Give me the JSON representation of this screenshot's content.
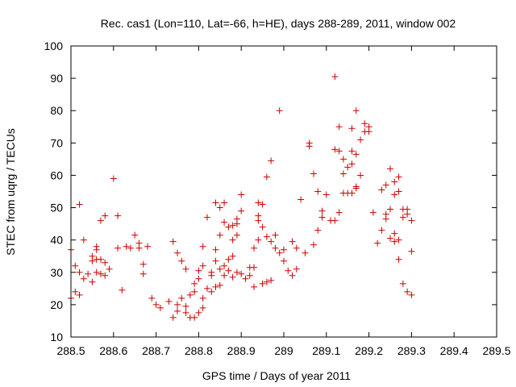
{
  "chart_data": {
    "type": "scatter",
    "title": "Rec. cas1 (Lon=110, Lat=-66, h=HE), days 288-289, 2011, window 002",
    "xlabel": "GPS time / Days of year 2011",
    "ylabel": "STEC from uqrg / TECUs",
    "xlim": [
      288.5,
      289.5
    ],
    "ylim": [
      10,
      100
    ],
    "xticks": [
      288.5,
      288.6,
      288.7,
      288.8,
      288.9,
      289,
      289.1,
      289.2,
      289.3,
      289.4,
      289.5
    ],
    "xtick_labels": [
      "288.5",
      "288.6",
      "288.7",
      "288.8",
      "288.9",
      "289",
      "289.1",
      "289.2",
      "289.3",
      "289.4",
      "289.5"
    ],
    "yticks": [
      10,
      20,
      30,
      40,
      50,
      60,
      70,
      80,
      90,
      100
    ],
    "ytick_labels": [
      "10",
      "20",
      "30",
      "40",
      "50",
      "60",
      "70",
      "80",
      "90",
      "100"
    ],
    "grid": false,
    "marker": "+",
    "color": "#cc0000",
    "series": [
      {
        "name": "STEC",
        "points": [
          [
            288.5,
            37.0
          ],
          [
            288.5,
            22.0
          ],
          [
            288.51,
            32.0
          ],
          [
            288.51,
            24.0
          ],
          [
            288.52,
            51.0
          ],
          [
            288.52,
            23.0
          ],
          [
            288.52,
            30.0
          ],
          [
            288.53,
            40.0
          ],
          [
            288.53,
            28.0
          ],
          [
            288.54,
            29.5
          ],
          [
            288.55,
            35.0
          ],
          [
            288.55,
            33.5
          ],
          [
            288.55,
            27.0
          ],
          [
            288.56,
            38.0
          ],
          [
            288.56,
            37.0
          ],
          [
            288.56,
            34.0
          ],
          [
            288.56,
            30.0
          ],
          [
            288.57,
            46.0
          ],
          [
            288.57,
            34.0
          ],
          [
            288.57,
            29.5
          ],
          [
            288.58,
            47.5
          ],
          [
            288.58,
            33.0
          ],
          [
            288.58,
            29.0
          ],
          [
            288.59,
            31.0
          ],
          [
            288.6,
            59.0
          ],
          [
            288.61,
            47.5
          ],
          [
            288.61,
            37.5
          ],
          [
            288.62,
            24.5
          ],
          [
            288.63,
            38.0
          ],
          [
            288.64,
            37.5
          ],
          [
            288.65,
            41.5
          ],
          [
            288.66,
            39.0
          ],
          [
            288.66,
            37.5
          ],
          [
            288.67,
            29.5
          ],
          [
            288.67,
            32.5
          ],
          [
            288.68,
            38.0
          ],
          [
            288.69,
            22.0
          ],
          [
            288.7,
            20.0
          ],
          [
            288.71,
            19.0
          ],
          [
            288.73,
            21.0
          ],
          [
            288.74,
            16.0
          ],
          [
            288.74,
            39.5
          ],
          [
            288.75,
            36.0
          ],
          [
            288.75,
            20.0
          ],
          [
            288.75,
            18.0
          ],
          [
            288.76,
            33.5
          ],
          [
            288.76,
            22.0
          ],
          [
            288.77,
            19.5
          ],
          [
            288.77,
            17.5
          ],
          [
            288.77,
            31.0
          ],
          [
            288.78,
            23.0
          ],
          [
            288.78,
            16.0
          ],
          [
            288.79,
            26.5
          ],
          [
            288.79,
            24.0
          ],
          [
            288.79,
            16.0
          ],
          [
            288.8,
            30.5
          ],
          [
            288.8,
            28.0
          ],
          [
            288.8,
            17.5
          ],
          [
            288.81,
            38.0
          ],
          [
            288.81,
            32.0
          ],
          [
            288.81,
            22.0
          ],
          [
            288.81,
            19.0
          ],
          [
            288.82,
            47.0
          ],
          [
            288.82,
            25.0
          ],
          [
            288.83,
            24.0
          ],
          [
            288.83,
            29.0
          ],
          [
            288.83,
            30.0
          ],
          [
            288.84,
            51.5
          ],
          [
            288.84,
            37.0
          ],
          [
            288.84,
            33.5
          ],
          [
            288.84,
            25.5
          ],
          [
            288.85,
            50.0
          ],
          [
            288.85,
            41.5
          ],
          [
            288.85,
            31.0
          ],
          [
            288.85,
            26.0
          ],
          [
            288.86,
            51.5
          ],
          [
            288.86,
            45.5
          ],
          [
            288.86,
            32.0
          ],
          [
            288.86,
            29.0
          ],
          [
            288.87,
            44.0
          ],
          [
            288.87,
            34.0
          ],
          [
            288.87,
            30.5
          ],
          [
            288.88,
            44.5
          ],
          [
            288.88,
            40.0
          ],
          [
            288.88,
            35.0
          ],
          [
            288.88,
            28.5
          ],
          [
            288.89,
            46.5
          ],
          [
            288.89,
            45.0
          ],
          [
            288.89,
            41.5
          ],
          [
            288.89,
            30.0
          ],
          [
            288.9,
            54.0
          ],
          [
            288.9,
            49.0
          ],
          [
            288.9,
            29.5
          ],
          [
            288.91,
            28.0
          ],
          [
            288.92,
            31.5
          ],
          [
            288.92,
            29.0
          ],
          [
            288.93,
            31.5
          ],
          [
            288.93,
            25.5
          ],
          [
            288.93,
            37.5
          ],
          [
            288.94,
            51.5
          ],
          [
            288.94,
            47.5
          ],
          [
            288.94,
            46.0
          ],
          [
            288.94,
            40.0
          ],
          [
            288.95,
            51.0
          ],
          [
            288.95,
            44.0
          ],
          [
            288.95,
            26.5
          ],
          [
            288.96,
            59.5
          ],
          [
            288.96,
            41.0
          ],
          [
            288.96,
            27.0
          ],
          [
            288.97,
            64.5
          ],
          [
            288.97,
            39.5
          ],
          [
            288.97,
            27.5
          ],
          [
            288.98,
            41.5
          ],
          [
            288.98,
            37.5
          ],
          [
            288.99,
            80.0
          ],
          [
            288.99,
            36.0
          ],
          [
            289.0,
            33.5
          ],
          [
            289.0,
            37.0
          ],
          [
            289.01,
            30.5
          ],
          [
            289.02,
            39.5
          ],
          [
            289.02,
            29.0
          ],
          [
            289.03,
            31.0
          ],
          [
            289.03,
            37.5
          ],
          [
            289.04,
            52.5
          ],
          [
            289.05,
            36.0
          ],
          [
            289.06,
            70.0
          ],
          [
            289.06,
            69.0
          ],
          [
            289.07,
            38.5
          ],
          [
            289.07,
            60.5
          ],
          [
            289.08,
            43.0
          ],
          [
            289.08,
            55.0
          ],
          [
            289.09,
            49.0
          ],
          [
            289.09,
            47.0
          ],
          [
            289.1,
            54.0
          ],
          [
            289.11,
            46.0
          ],
          [
            289.12,
            90.5
          ],
          [
            289.12,
            68.0
          ],
          [
            289.12,
            46.0
          ],
          [
            289.13,
            75.0
          ],
          [
            289.13,
            48.5
          ],
          [
            289.13,
            67.5
          ],
          [
            289.14,
            65.0
          ],
          [
            289.14,
            60.5
          ],
          [
            289.14,
            54.5
          ],
          [
            289.15,
            62.5
          ],
          [
            289.15,
            54.5
          ],
          [
            289.16,
            74.5
          ],
          [
            289.16,
            67.5
          ],
          [
            289.16,
            63.5
          ],
          [
            289.16,
            54.5
          ],
          [
            289.17,
            80.0
          ],
          [
            289.17,
            66.5
          ],
          [
            289.17,
            56.5
          ],
          [
            289.17,
            56.0
          ],
          [
            289.18,
            71.0
          ],
          [
            289.18,
            60.0
          ],
          [
            289.19,
            76.0
          ],
          [
            289.19,
            73.5
          ],
          [
            289.2,
            75.0
          ],
          [
            289.2,
            73.5
          ],
          [
            289.21,
            48.5
          ],
          [
            289.22,
            39.0
          ],
          [
            289.23,
            55.5
          ],
          [
            289.23,
            43.0
          ],
          [
            289.24,
            57.0
          ],
          [
            289.24,
            48.0
          ],
          [
            289.24,
            46.5
          ],
          [
            289.25,
            62.0
          ],
          [
            289.25,
            49.5
          ],
          [
            289.25,
            40.5
          ],
          [
            289.26,
            58.0
          ],
          [
            289.26,
            54.0
          ],
          [
            289.26,
            42.0
          ],
          [
            289.26,
            39.5
          ],
          [
            289.27,
            59.5
          ],
          [
            289.27,
            55.0
          ],
          [
            289.27,
            40.0
          ],
          [
            289.27,
            34.0
          ],
          [
            289.28,
            26.5
          ],
          [
            289.28,
            47.0
          ],
          [
            289.28,
            49.5
          ],
          [
            289.29,
            49.5
          ],
          [
            289.29,
            48.0
          ],
          [
            289.29,
            24.0
          ],
          [
            289.3,
            46.0
          ],
          [
            289.3,
            36.5
          ],
          [
            289.3,
            23.0
          ]
        ]
      }
    ]
  }
}
